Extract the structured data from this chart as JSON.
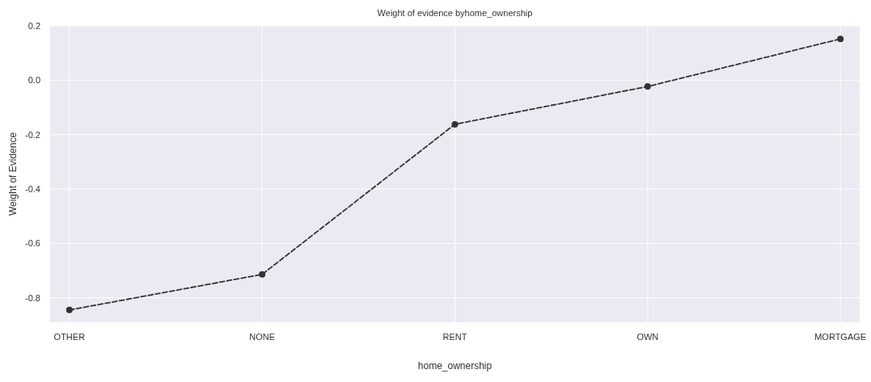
{
  "chart_data": {
    "type": "line",
    "title": "Weight of evidence byhome_ownership",
    "xlabel": "home_ownership",
    "ylabel": "Weight of Evidence",
    "categories": [
      "OTHER",
      "NONE",
      "RENT",
      "OWN",
      "MORTGAGE"
    ],
    "series": [
      {
        "color": "#333333",
        "values": [
          -0.845,
          -0.714,
          -0.162,
          -0.023,
          0.152
        ]
      }
    ],
    "ylim": [
      -0.89,
      0.2
    ],
    "yticks": [
      0.2,
      {
        "value": 0,
        "label": "0.0"
      },
      -0.2,
      -0.4,
      -0.6,
      -0.8
    ],
    "grid": true,
    "marker": "circle",
    "line_style": "dashed"
  }
}
